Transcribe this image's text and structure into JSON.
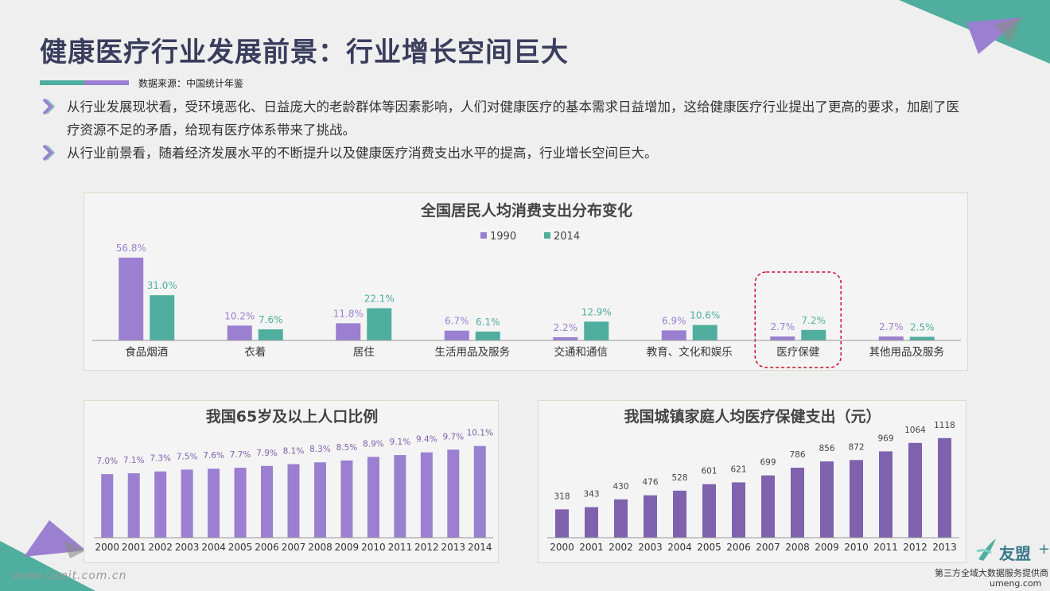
{
  "page": {
    "title": "健康医疗行业发展前景：行业增长空间巨大",
    "source": "数据来源：中国统计年鉴",
    "bullets": [
      "从行业发展现状看，受环境恶化、日益庞大的老龄群体等因素影响，人们对健康医疗的基本需求日益增加，这给健康医疗行业提出了更高的要求，加剧了医疗资源不足的矛盾，给现有医疗体系带来了挑战。",
      "从行业前景看，随着经济发展水平的不断提升以及健康医疗消费支出水平的提高，行业增长空间巨大。"
    ],
    "watermark": "www.useit.com.cn",
    "brand": {
      "name": "友盟",
      "plus": "+",
      "tagline": "第三方全域大数据服务提供商",
      "url": "umeng.com"
    },
    "colors": {
      "purple": "#9b7fd0",
      "teal": "#4fae9e",
      "dark_purple": "#7f62ad",
      "title": "#3a3d5c",
      "highlight": "#c8102e"
    }
  },
  "chart_data": [
    {
      "type": "bar",
      "title": "全国居民人均消费支出分布变化",
      "categories": [
        "食品烟酒",
        "衣着",
        "居住",
        "生活用品及服务",
        "交通和通信",
        "教育、文化和娱乐",
        "医疗保健",
        "其他用品及服务"
      ],
      "series": [
        {
          "name": "1990",
          "values": [
            56.8,
            10.2,
            11.8,
            6.7,
            2.2,
            6.9,
            2.7,
            2.7
          ],
          "labels": [
            "56.8%",
            "10.2%",
            "11.8%",
            "6.7%",
            "2.2%",
            "6.9%",
            "2.7%",
            "2.7%"
          ],
          "color": "#9b7fd0"
        },
        {
          "name": "2014",
          "values": [
            31.0,
            7.6,
            22.1,
            6.1,
            12.9,
            10.6,
            7.2,
            2.5
          ],
          "labels": [
            "31.0%",
            "7.6%",
            "22.1%",
            "6.1%",
            "12.9%",
            "10.6%",
            "7.2%",
            "2.5%"
          ],
          "color": "#4fae9e"
        }
      ],
      "ylim": [
        0,
        60
      ],
      "legend": "top-center",
      "highlight_category": "医疗保健"
    },
    {
      "type": "bar",
      "title": "我国65岁及以上人口比例",
      "categories": [
        "2000",
        "2001",
        "2002",
        "2003",
        "2004",
        "2005",
        "2006",
        "2007",
        "2008",
        "2009",
        "2010",
        "2011",
        "2012",
        "2013",
        "2014"
      ],
      "values": [
        7.0,
        7.1,
        7.3,
        7.5,
        7.6,
        7.7,
        7.9,
        8.1,
        8.3,
        8.5,
        8.9,
        9.1,
        9.4,
        9.7,
        10.1
      ],
      "labels": [
        "7.0%",
        "7.1%",
        "7.3%",
        "7.5%",
        "7.6%",
        "7.7%",
        "7.9%",
        "8.1%",
        "8.3%",
        "8.5%",
        "8.9%",
        "9.1%",
        "9.4%",
        "9.7%",
        "10.1%"
      ],
      "color": "#9b7fd0",
      "ylim": [
        0,
        12
      ]
    },
    {
      "type": "bar",
      "title": "我国城镇家庭人均医疗保健支出（元）",
      "categories": [
        "2000",
        "2001",
        "2002",
        "2003",
        "2004",
        "2005",
        "2006",
        "2007",
        "2008",
        "2009",
        "2010",
        "2011",
        "2012",
        "2013"
      ],
      "values": [
        318,
        343,
        430,
        476,
        528,
        601,
        621,
        699,
        786,
        856,
        872,
        969,
        1064,
        1118
      ],
      "labels": [
        "318",
        "343",
        "430",
        "476",
        "528",
        "601",
        "621",
        "699",
        "786",
        "856",
        "872",
        "969",
        "1064",
        "1118"
      ],
      "color": "#7f62ad",
      "ylim": [
        0,
        1250
      ]
    }
  ]
}
